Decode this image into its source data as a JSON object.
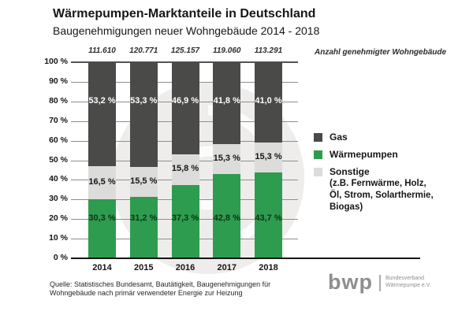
{
  "chart_data": {
    "type": "bar",
    "stacked": true,
    "title": "Wärmepumpen-Marktanteile in Deutschland",
    "subtitle": "Baugenehmigungen neuer Wohngebäude 2014 - 2018",
    "categories": [
      "2014",
      "2015",
      "2016",
      "2017",
      "2018"
    ],
    "totals": [
      "111.610",
      "120.771",
      "125.157",
      "119.060",
      "113.291"
    ],
    "totals_caption": "Anzahl genehmigter Wohngebäude",
    "y_ticks": [
      "100 %",
      "90 %",
      "80 %",
      "70 %",
      "60 %",
      "50 %",
      "40 %",
      "30 %",
      "20 %",
      "10 %",
      "0 %"
    ],
    "ylim": [
      0,
      100
    ],
    "grid": true,
    "legend_position": "right",
    "stack_order_top_to_bottom": [
      "Gas",
      "Sonstige",
      "Wärmepumpen"
    ],
    "series": [
      {
        "name": "Gas",
        "color": "#4a4a48",
        "label_color": "#ffffff",
        "values": [
          53.2,
          53.3,
          46.9,
          41.8,
          41.0
        ],
        "labels": [
          "53,2 %",
          "53,3 %",
          "46,9 %",
          "41,8 %",
          "41,0 %"
        ]
      },
      {
        "name": "Wärmepumpen",
        "color": "#2e9c4e",
        "label_color": "#0c3318",
        "values": [
          30.3,
          31.2,
          37.3,
          42.8,
          43.7
        ],
        "labels": [
          "30,3 %",
          "31,2 %",
          "37,3 %",
          "42,8 %",
          "43,7 %"
        ]
      },
      {
        "name": "Sonstige",
        "color": "#dcdcda",
        "label_color": "#161616",
        "values": [
          16.5,
          15.5,
          15.8,
          15.3,
          15.3
        ],
        "labels": [
          "16,5 %",
          "15,5 %",
          "15,8 %",
          "15,3 %",
          "15,3 %"
        ]
      }
    ]
  },
  "legend": {
    "items": [
      {
        "label": "Gas"
      },
      {
        "label": "Wärmepumpen"
      },
      {
        "label": "Sonstige",
        "sublines": [
          "(z.B. Fernwärme, Holz,",
          "Öl, Strom, Solarthermie,",
          "Biogas)"
        ]
      }
    ]
  },
  "footer": {
    "source_lines": [
      "Quelle: Statistisches Bundesamt, Bautätigkeit, Baugenehmigungen für",
      "Wohngebäude nach primär verwendeter Energie zur Heizung"
    ],
    "logo": {
      "wordmark": "bwp",
      "org_lines": [
        "Bundesverband",
        "Wärmepumpe e.V."
      ]
    }
  }
}
